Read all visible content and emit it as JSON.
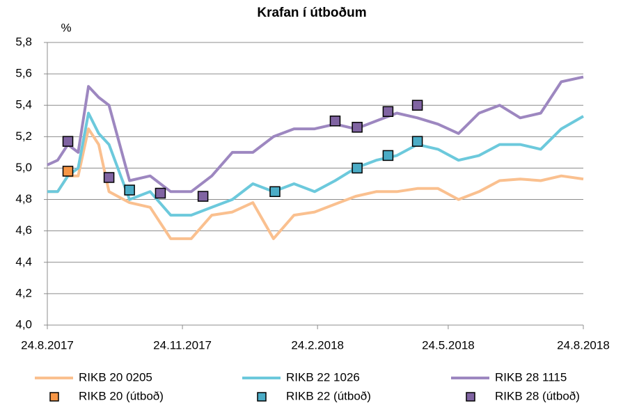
{
  "chart_data": {
    "type": "line",
    "title": "Krafan  í útboðum",
    "y_label": "%",
    "xlim": [
      "2017-08-24",
      "2018-08-24"
    ],
    "xticks": [
      {
        "value": "2017-08-24",
        "label": "24.8.2017"
      },
      {
        "value": "2017-11-24",
        "label": "24.11.2017"
      },
      {
        "value": "2018-02-24",
        "label": "24.2.2018"
      },
      {
        "value": "2018-05-24",
        "label": "24.5.2018"
      },
      {
        "value": "2018-08-24",
        "label": "24.8.2018"
      }
    ],
    "ylim": [
      4.0,
      5.8
    ],
    "yticks": [
      {
        "value": 4.0,
        "label": "4,0"
      },
      {
        "value": 4.2,
        "label": "4,2"
      },
      {
        "value": 4.4,
        "label": "4,4"
      },
      {
        "value": 4.6,
        "label": "4,6"
      },
      {
        "value": 4.8,
        "label": "4,8"
      },
      {
        "value": 5.0,
        "label": "5,0"
      },
      {
        "value": 5.2,
        "label": "5,2"
      },
      {
        "value": 5.4,
        "label": "5,4"
      },
      {
        "value": 5.6,
        "label": "5,6"
      },
      {
        "value": 5.8,
        "label": "5,8"
      }
    ],
    "grid": true,
    "series": [
      {
        "name": "RIKB 20 0205",
        "style": "line",
        "color": "#fac08f",
        "x": [
          "2017-08-24",
          "2017-08-31",
          "2017-09-07",
          "2017-09-14",
          "2017-09-21",
          "2017-09-28",
          "2017-10-05",
          "2017-10-19",
          "2017-11-02",
          "2017-11-16",
          "2017-11-30",
          "2017-12-14",
          "2017-12-28",
          "2018-01-11",
          "2018-01-25",
          "2018-02-08",
          "2018-02-22",
          "2018-03-08",
          "2018-03-22",
          "2018-04-05",
          "2018-04-19",
          "2018-05-03",
          "2018-05-17",
          "2018-05-31",
          "2018-06-14",
          "2018-06-28",
          "2018-07-12",
          "2018-07-26",
          "2018-08-09",
          "2018-08-24"
        ],
        "values": [
          4.85,
          4.85,
          4.95,
          4.95,
          5.25,
          5.15,
          4.85,
          4.78,
          4.75,
          4.55,
          4.55,
          4.7,
          4.72,
          4.78,
          4.55,
          4.7,
          4.72,
          4.77,
          4.82,
          4.85,
          4.85,
          4.87,
          4.87,
          4.8,
          4.85,
          4.92,
          4.93,
          4.92,
          4.95,
          4.93
        ]
      },
      {
        "name": "RIKB 22 1026",
        "style": "line",
        "color": "#6cc9dc",
        "x": [
          "2017-08-24",
          "2017-08-31",
          "2017-09-07",
          "2017-09-14",
          "2017-09-21",
          "2017-09-28",
          "2017-10-05",
          "2017-10-19",
          "2017-11-02",
          "2017-11-16",
          "2017-11-30",
          "2017-12-14",
          "2017-12-28",
          "2018-01-11",
          "2018-01-25",
          "2018-02-08",
          "2018-02-22",
          "2018-03-08",
          "2018-03-22",
          "2018-04-05",
          "2018-04-19",
          "2018-05-03",
          "2018-05-17",
          "2018-05-31",
          "2018-06-14",
          "2018-06-28",
          "2018-07-12",
          "2018-07-26",
          "2018-08-09",
          "2018-08-24"
        ],
        "values": [
          4.85,
          4.85,
          4.95,
          5.0,
          5.35,
          5.22,
          5.15,
          4.8,
          4.85,
          4.7,
          4.7,
          4.75,
          4.8,
          4.9,
          4.85,
          4.9,
          4.85,
          4.92,
          5.0,
          5.05,
          5.08,
          5.15,
          5.12,
          5.05,
          5.08,
          5.15,
          5.15,
          5.12,
          5.25,
          5.33
        ]
      },
      {
        "name": "RIKB 28 1115",
        "style": "line",
        "color": "#9d87c0",
        "x": [
          "2017-08-24",
          "2017-08-31",
          "2017-09-07",
          "2017-09-14",
          "2017-09-21",
          "2017-09-28",
          "2017-10-05",
          "2017-10-19",
          "2017-11-02",
          "2017-11-16",
          "2017-11-30",
          "2017-12-14",
          "2017-12-28",
          "2018-01-11",
          "2018-01-25",
          "2018-02-08",
          "2018-02-22",
          "2018-03-08",
          "2018-03-22",
          "2018-04-05",
          "2018-04-19",
          "2018-05-03",
          "2018-05-17",
          "2018-05-31",
          "2018-06-14",
          "2018-06-28",
          "2018-07-12",
          "2018-07-26",
          "2018-08-09",
          "2018-08-24"
        ],
        "values": [
          5.02,
          5.05,
          5.15,
          5.1,
          5.52,
          5.45,
          5.4,
          4.92,
          4.95,
          4.85,
          4.85,
          4.95,
          5.1,
          5.1,
          5.2,
          5.25,
          5.25,
          5.28,
          5.25,
          5.3,
          5.35,
          5.32,
          5.28,
          5.22,
          5.35,
          5.4,
          5.32,
          5.35,
          5.55,
          5.58
        ]
      },
      {
        "name": "RIKB 20 (útboð)",
        "style": "marker",
        "color": "#f79646",
        "x": [
          "2017-09-07"
        ],
        "values": [
          4.98
        ]
      },
      {
        "name": "RIKB 22 (útboð)",
        "style": "marker",
        "color": "#4bacc6",
        "x": [
          "2017-10-19",
          "2018-01-26",
          "2018-03-23",
          "2018-04-13",
          "2018-05-03"
        ],
        "values": [
          4.86,
          4.85,
          5.0,
          5.08,
          5.17
        ]
      },
      {
        "name": "RIKB 28 (útboð)",
        "style": "marker",
        "color": "#8064a2",
        "x": [
          "2017-09-07",
          "2017-10-05",
          "2017-11-09",
          "2017-12-08",
          "2018-03-08",
          "2018-03-23",
          "2018-04-13",
          "2018-05-03"
        ],
        "values": [
          5.17,
          4.94,
          4.84,
          4.82,
          5.3,
          5.26,
          5.36,
          5.4
        ]
      }
    ]
  }
}
